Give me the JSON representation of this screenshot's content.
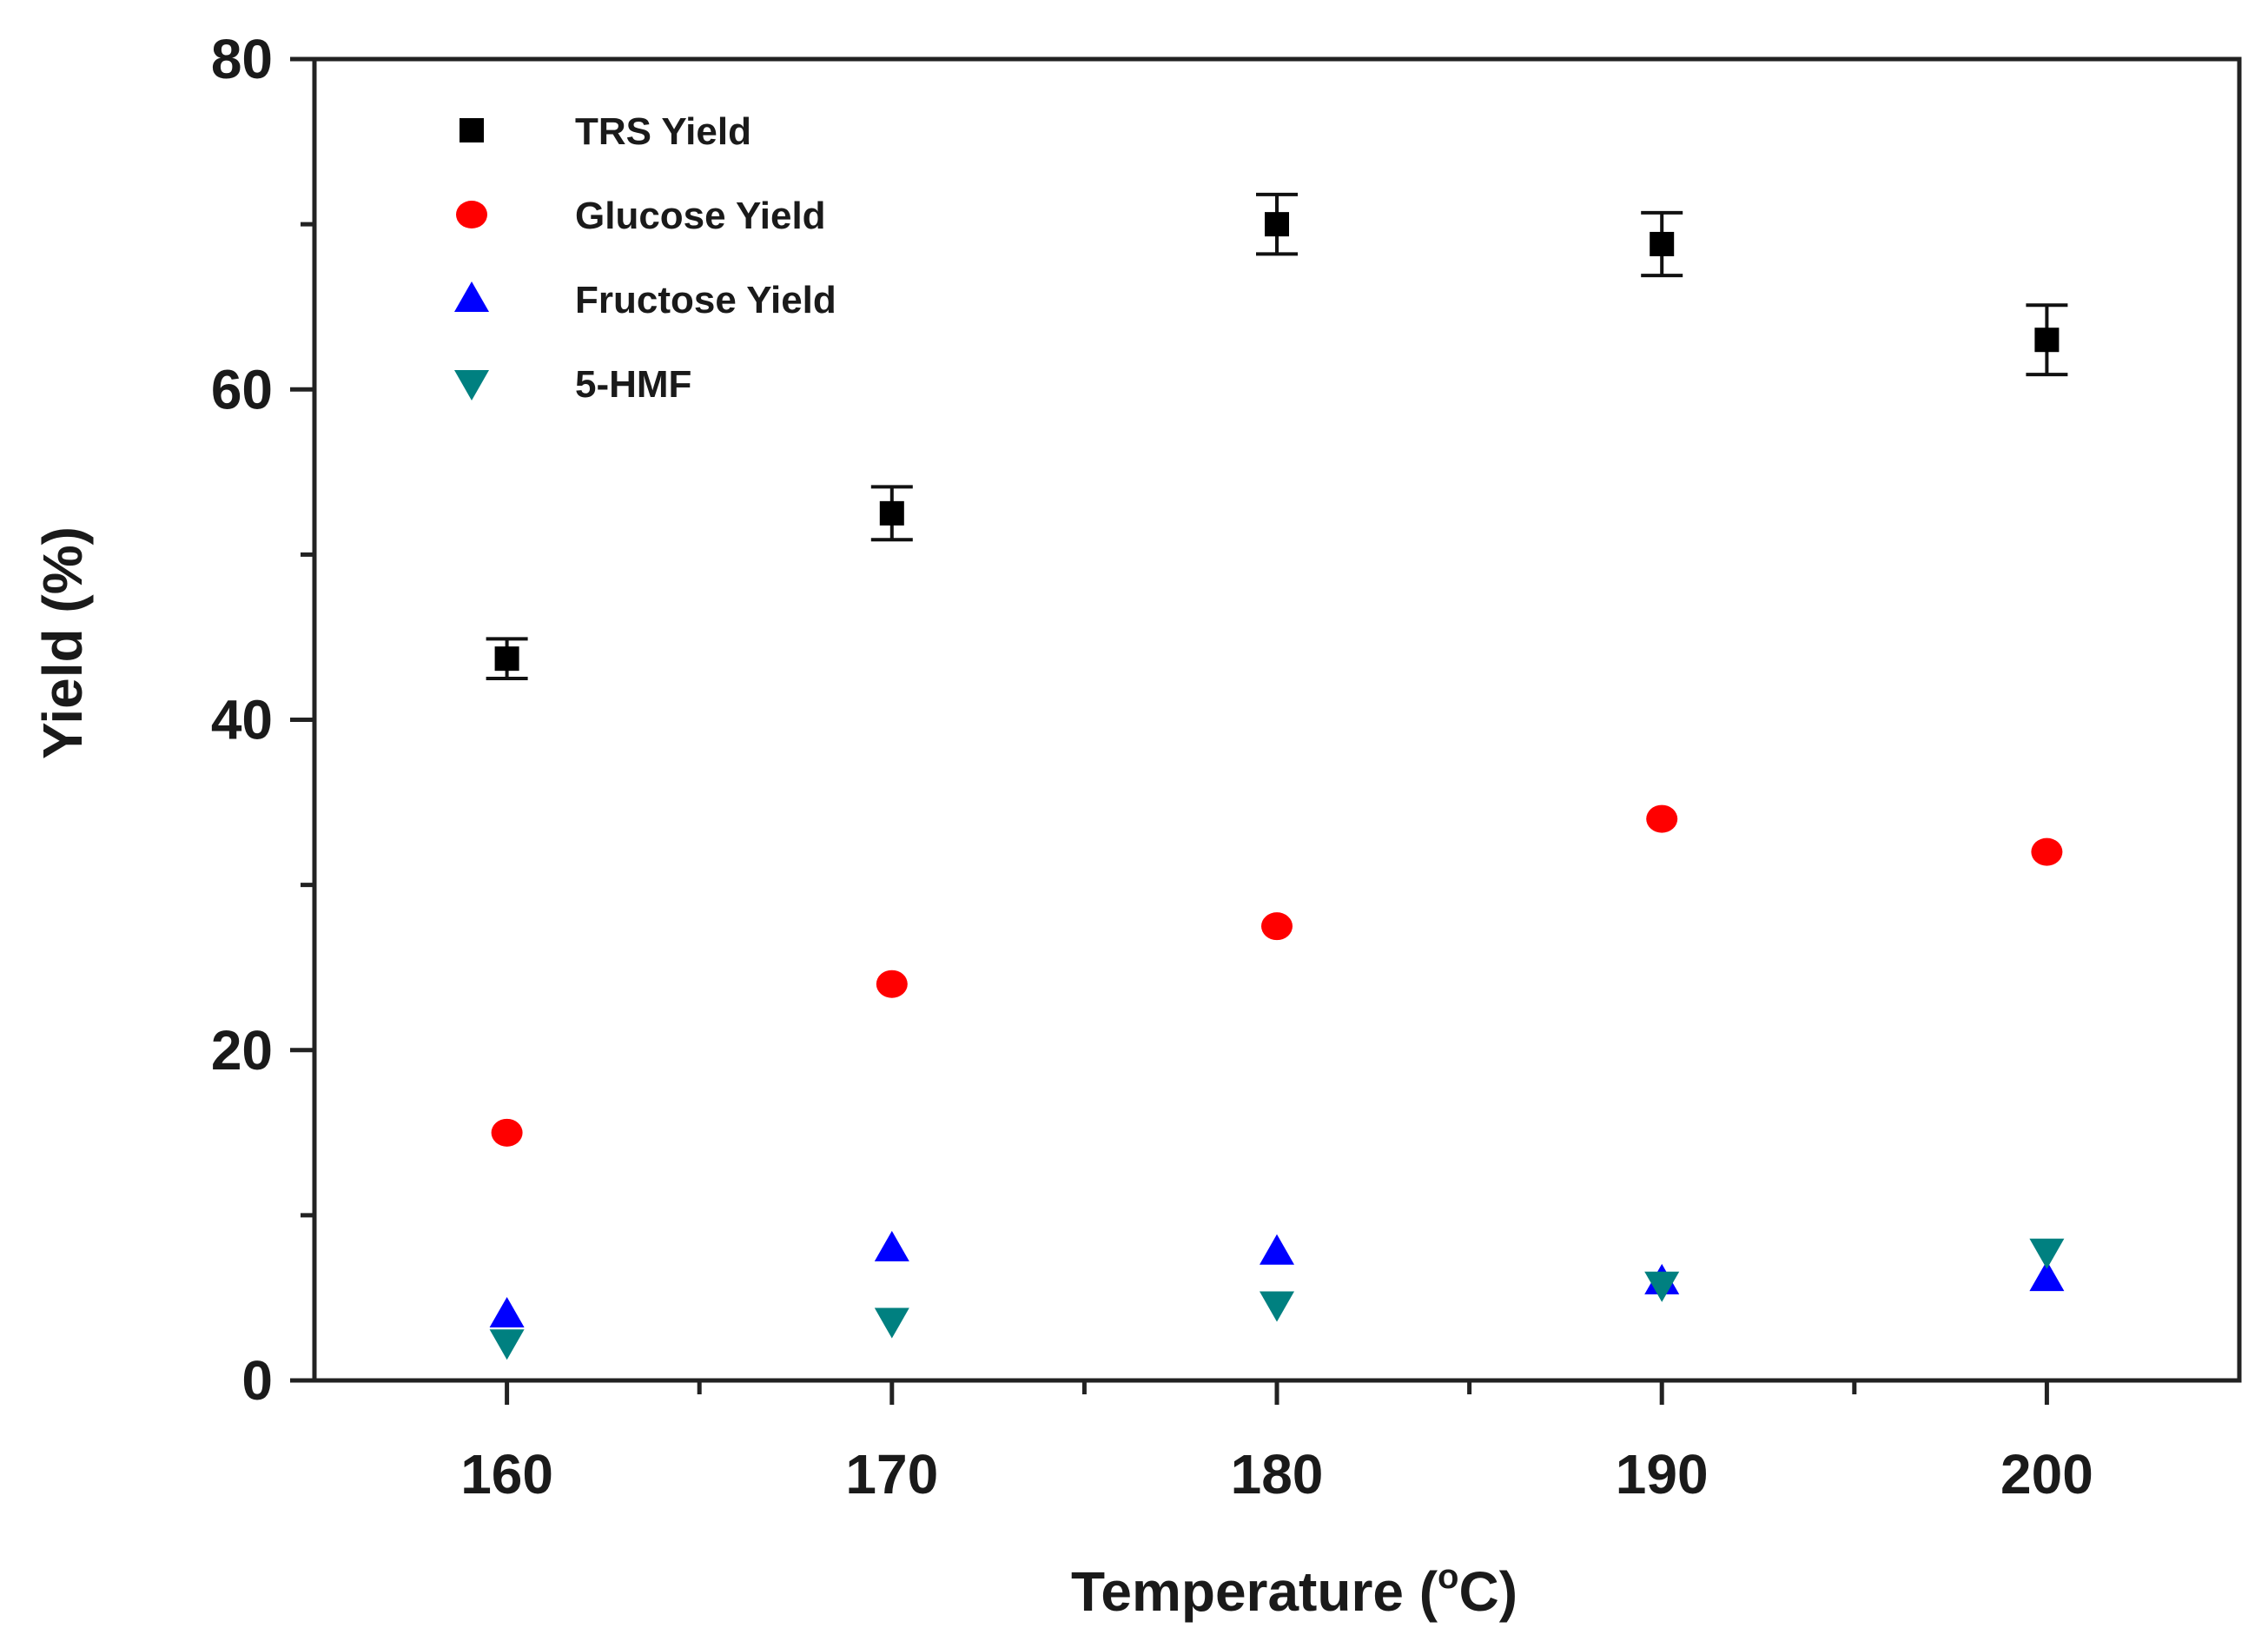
{
  "chart_data": {
    "type": "scatter",
    "title": "",
    "xlabel": "Temperature (°C)",
    "xlabel_main": "Temperature (",
    "xlabel_degree": "o",
    "xlabel_unit": "C)",
    "ylabel": "Yield (%)",
    "xlim": [
      155,
      205
    ],
    "ylim": [
      0,
      80
    ],
    "xticks": [
      160,
      170,
      180,
      190,
      200
    ],
    "xticks_minor": [
      165,
      175,
      185,
      195
    ],
    "yticks": [
      0,
      20,
      40,
      60,
      80
    ],
    "yticks_minor": [
      10,
      30,
      50,
      70
    ],
    "legend_position": "top-left",
    "series": [
      {
        "name": "TRS Yield",
        "marker": "square",
        "color": "#000000",
        "x": [
          160,
          170,
          180,
          190,
          200
        ],
        "y": [
          43.7,
          52.5,
          70.0,
          68.8,
          63.0
        ],
        "yerr": [
          1.2,
          1.6,
          1.8,
          1.9,
          2.1
        ]
      },
      {
        "name": "Glucose Yield",
        "marker": "circle",
        "color": "#ff0000",
        "x": [
          160,
          170,
          180,
          190,
          200
        ],
        "y": [
          15.0,
          24.0,
          27.5,
          34.0,
          32.0
        ]
      },
      {
        "name": "Fructose Yield",
        "marker": "triangle-up",
        "color": "#0000ff",
        "x": [
          160,
          170,
          180,
          190,
          200
        ],
        "y": [
          4.0,
          8.0,
          7.8,
          6.0,
          6.2
        ]
      },
      {
        "name": "5-HMF",
        "marker": "triangle-down",
        "color": "#008080",
        "x": [
          160,
          170,
          180,
          190,
          200
        ],
        "y": [
          2.3,
          3.6,
          4.6,
          5.8,
          7.8
        ]
      }
    ]
  }
}
